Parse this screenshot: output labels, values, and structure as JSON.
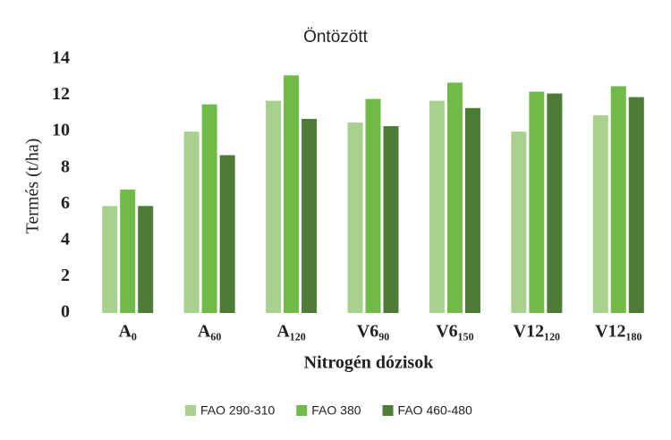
{
  "chart_data": {
    "type": "bar",
    "title": "Öntözött",
    "x_label": "Nitrogén dózisok",
    "y_label": "Termés (t/ha)",
    "categories": [
      "A₀",
      "A₆₀",
      "A₁₂₀",
      "V6₉₀",
      "V6₁₅₀",
      "V12₁₂₀",
      "V12₁₈₀"
    ],
    "series": [
      {
        "name": "FAO 290-310",
        "color": "#a9d18e",
        "values": [
          5.9,
          10.0,
          11.7,
          10.5,
          11.7,
          10.0,
          10.9
        ]
      },
      {
        "name": "FAO 380",
        "color": "#70ba48",
        "values": [
          6.8,
          11.5,
          13.1,
          11.8,
          12.7,
          12.2,
          12.5
        ]
      },
      {
        "name": "FAO 460-480",
        "color": "#4c7c35",
        "values": [
          5.9,
          8.7,
          10.7,
          10.3,
          11.3,
          12.1,
          11.9
        ]
      }
    ],
    "ylim": [
      0,
      14
    ],
    "yticks": [
      0,
      2,
      4,
      6,
      8,
      10,
      12,
      14
    ],
    "grid": false,
    "legend": "bottom"
  }
}
